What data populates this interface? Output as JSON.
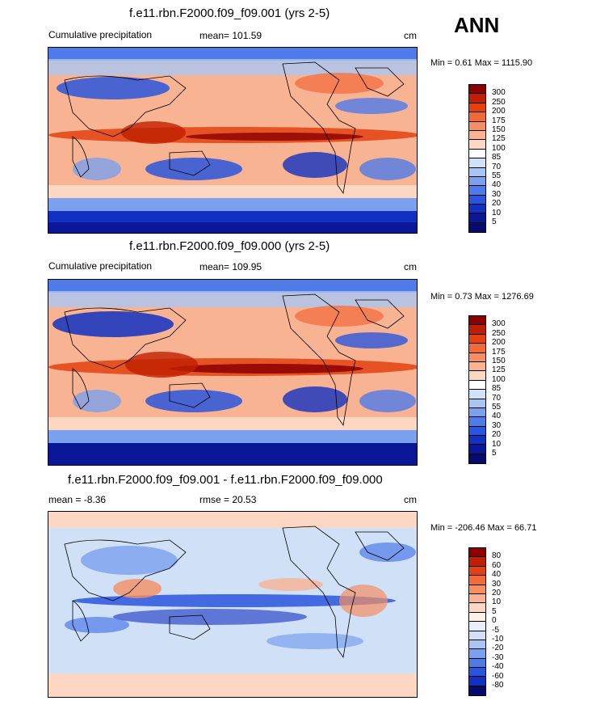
{
  "season": "ANN",
  "panels": [
    {
      "title": "f.e11.rbn.F2000.f09_f09.001 (yrs 2-5)",
      "left_label": "Cumulative precipitation",
      "center_label": "mean= 101.59",
      "right_label": "cm",
      "minmax": "Min =   0.61 Max = 1115.90",
      "levels": [
        "300",
        "250",
        "200",
        "175",
        "150",
        "125",
        "100",
        "85",
        "70",
        "55",
        "40",
        "30",
        "20",
        "10",
        "5"
      ],
      "colors": [
        "#8a0000",
        "#bf1f00",
        "#e3410f",
        "#f26a3a",
        "#f58e62",
        "#f8b393",
        "#fcd8c4",
        "#ffffff",
        "#cfe0f7",
        "#a9c5f2",
        "#7aa0ee",
        "#4f7be8",
        "#2a55dc",
        "#1231c2",
        "#0a1897",
        "#050a6b"
      ]
    },
    {
      "title": "f.e11.rbn.F2000.f09_f09.000 (yrs 2-5)",
      "left_label": "Cumulative precipitation",
      "center_label": "mean= 109.95",
      "right_label": "cm",
      "minmax": "Min =   0.73 Max = 1276.69",
      "levels": [
        "300",
        "250",
        "200",
        "175",
        "150",
        "125",
        "100",
        "85",
        "70",
        "55",
        "40",
        "30",
        "20",
        "10",
        "5"
      ],
      "colors": [
        "#8a0000",
        "#bf1f00",
        "#e3410f",
        "#f26a3a",
        "#f58e62",
        "#f8b393",
        "#fcd8c4",
        "#ffffff",
        "#cfe0f7",
        "#a9c5f2",
        "#7aa0ee",
        "#4f7be8",
        "#2a55dc",
        "#1231c2",
        "#0a1897",
        "#050a6b"
      ]
    },
    {
      "title": "f.e11.rbn.F2000.f09_f09.001 - f.e11.rbn.F2000.f09_f09.000",
      "left_label": "mean =  -8.36",
      "center_label": "rmse =  20.53",
      "right_label": "cm",
      "minmax": "Min = -206.46 Max =  66.71",
      "levels": [
        "80",
        "60",
        "40",
        "30",
        "20",
        "10",
        "5",
        "0",
        "-5",
        "-10",
        "-20",
        "-30",
        "-40",
        "-60",
        "-80"
      ],
      "colors": [
        "#8a0000",
        "#bf1f00",
        "#e3410f",
        "#f26a3a",
        "#f58e62",
        "#f8b393",
        "#fcd8c4",
        "#fff0e6",
        "#e8eefb",
        "#cfe0f7",
        "#a9c5f2",
        "#7aa0ee",
        "#4f7be8",
        "#2a55dc",
        "#1231c2",
        "#050a6b"
      ]
    }
  ]
}
